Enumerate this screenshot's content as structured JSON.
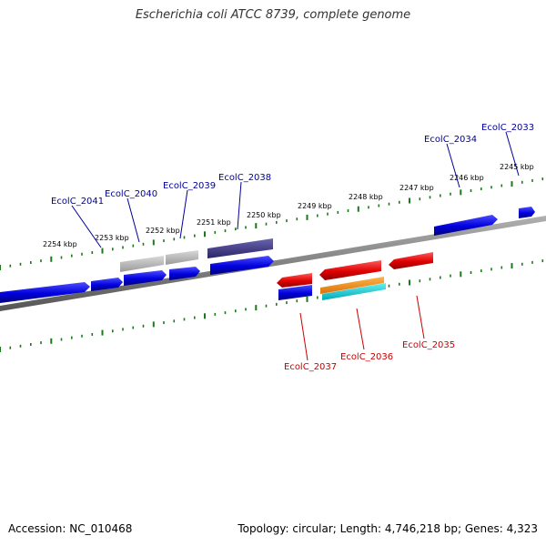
{
  "title": "Escherichia coli ATCC 8739, complete genome",
  "footer": {
    "accession": "Accession: NC_010468",
    "summary": "Topology: circular; Length: 4,746,218 bp; Genes: 4,323"
  },
  "colors": {
    "backbone": "#808080",
    "ticks": "#1a7a1a",
    "forward_gene": "#0000dd",
    "reverse_gene": "#dd0000",
    "forward_label": "#000099",
    "reverse_label": "#cc0000"
  },
  "scale_labels": [
    "2254 kbp",
    "2253 kbp",
    "2252 kbp",
    "2251 kbp",
    "2250 kbp",
    "2249 kbp",
    "2248 kbp",
    "2247 kbp",
    "2246 kbp",
    "2245 kbp"
  ],
  "gene_labels": {
    "forward": [
      "EcolC_2041",
      "EcolC_2040",
      "EcolC_2039",
      "EcolC_2038",
      "EcolC_2034",
      "EcolC_2033"
    ],
    "reverse": [
      "EcolC_2037",
      "EcolC_2036",
      "EcolC_2035"
    ]
  }
}
